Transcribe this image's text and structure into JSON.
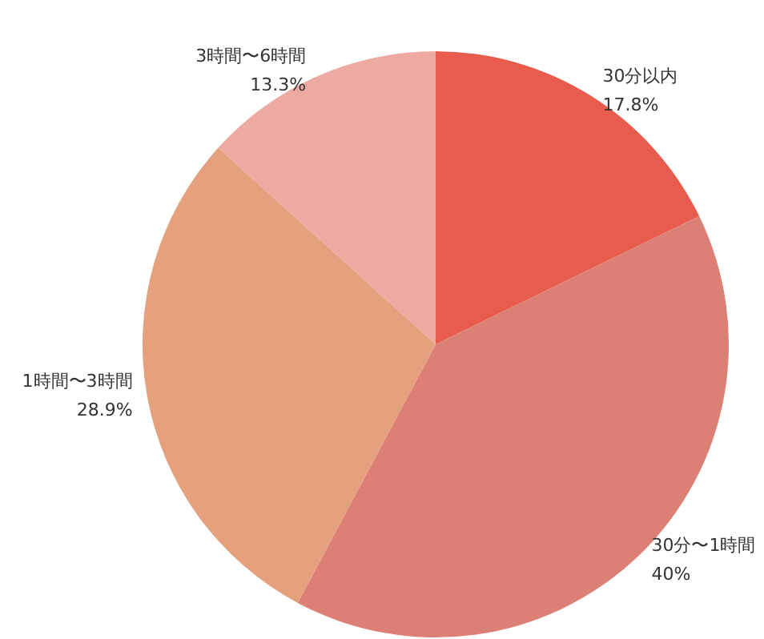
{
  "chart_data": {
    "type": "pie",
    "categories": [
      "30分以内",
      "30分〜1時間",
      "1時間〜3時間",
      "3時間〜6時間"
    ],
    "values": [
      17.8,
      40,
      28.9,
      13.3
    ],
    "value_labels": [
      "17.8%",
      "40%",
      "28.9%",
      "13.3%"
    ],
    "colors": [
      "#e85c4d",
      "#dc7f74",
      "#e5a07e",
      "#ecaaa2"
    ],
    "legend": false
  }
}
